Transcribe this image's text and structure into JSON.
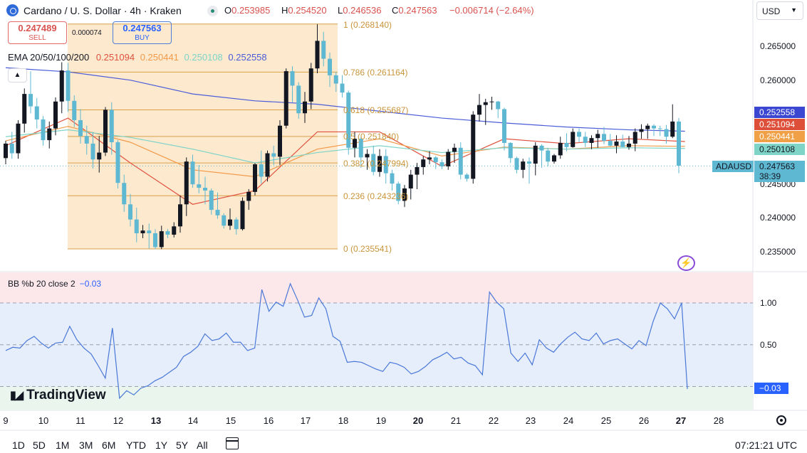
{
  "header": {
    "title": "Cardano / U. S. Dollar · 4h · Kraken",
    "ohlc": [
      {
        "key": "O",
        "value": "0.253985"
      },
      {
        "key": "H",
        "value": "0.254520"
      },
      {
        "key": "L",
        "value": "0.246536"
      },
      {
        "key": "C",
        "value": "0.247563"
      }
    ],
    "change": "−0.006714 (−2.64%)",
    "currency": "USD"
  },
  "trade": {
    "sell_price": "0.247489",
    "sell_label": "SELL",
    "spread": "0.000074",
    "buy_price": "0.247563",
    "buy_label": "BUY"
  },
  "ema_legend": {
    "label": "EMA 20/50/100/200",
    "values": [
      "0.251094",
      "0.250441",
      "0.250108",
      "0.252558"
    ],
    "colors": [
      "#e0523f",
      "#f29a4a",
      "#7fd4c8",
      "#4a5bd8"
    ]
  },
  "bb_legend": {
    "label": "BB %b 20 close 2",
    "value": "−0.03"
  },
  "fib_labels": [
    "1 (0.268140)",
    "0.786 (0.261164)",
    "0.618 (0.255687)",
    "0.5 (0.251840)",
    "0.382 (0.247994)",
    "0.236 (0.243236)",
    "0 (0.235541)"
  ],
  "price_axis": {
    "ticks": [
      "0.265000",
      "0.260000",
      "0.245000",
      "0.240000",
      "0.235000"
    ],
    "badges": [
      {
        "text": "0.252558",
        "color": "#3b47d0"
      },
      {
        "text": "0.251094",
        "color": "#de4f3a"
      },
      {
        "text": "0.250441",
        "color": "#f0a046"
      },
      {
        "text": "0.250108",
        "color": "#7fd4c8"
      }
    ],
    "symbol": "ADAUSD",
    "last_price": "0.247563",
    "countdown": "38:39"
  },
  "bb_axis": {
    "ticks": [
      "1.00",
      "0.50"
    ],
    "current": "−0.03"
  },
  "time_axis": {
    "ticks": [
      {
        "label": "9",
        "bold": false
      },
      {
        "label": "10",
        "bold": false
      },
      {
        "label": "11",
        "bold": false
      },
      {
        "label": "12",
        "bold": false
      },
      {
        "label": "13",
        "bold": true
      },
      {
        "label": "14",
        "bold": false
      },
      {
        "label": "15",
        "bold": false
      },
      {
        "label": "16",
        "bold": false
      },
      {
        "label": "17",
        "bold": false
      },
      {
        "label": "18",
        "bold": false
      },
      {
        "label": "19",
        "bold": false
      },
      {
        "label": "20",
        "bold": true
      },
      {
        "label": "21",
        "bold": false
      },
      {
        "label": "22",
        "bold": false
      },
      {
        "label": "23",
        "bold": false
      },
      {
        "label": "24",
        "bold": false
      },
      {
        "label": "25",
        "bold": false
      },
      {
        "label": "26",
        "bold": false
      },
      {
        "label": "27",
        "bold": true
      },
      {
        "label": "28",
        "bold": false
      }
    ]
  },
  "brand": "TradingView",
  "timeframes": [
    "1D",
    "5D",
    "1M",
    "3M",
    "6M",
    "YTD",
    "1Y",
    "5Y",
    "All"
  ],
  "clock": "07:21:21 UTC",
  "chart_data": [
    {
      "type": "candlestick",
      "title": "Cardano / U. S. Dollar · 4h · Kraken",
      "x_unit": "day of month (4h bars)",
      "y_range": [
        0.2325,
        0.2765
      ],
      "up_color": "#131722",
      "down_color": "#5fb8d1",
      "candles": [
        [
          0.2487,
          0.2512,
          0.2478,
          0.2508
        ],
        [
          0.2508,
          0.2525,
          0.2486,
          0.2494
        ],
        [
          0.2494,
          0.2542,
          0.2486,
          0.2537
        ],
        [
          0.2537,
          0.2588,
          0.2524,
          0.258
        ],
        [
          0.258,
          0.2613,
          0.2552,
          0.2562
        ],
        [
          0.2562,
          0.2574,
          0.253,
          0.2543
        ],
        [
          0.2543,
          0.2548,
          0.2505,
          0.2513
        ],
        [
          0.2513,
          0.254,
          0.2501,
          0.253
        ],
        [
          0.253,
          0.2575,
          0.252,
          0.2569
        ],
        [
          0.2569,
          0.2626,
          0.2552,
          0.2614
        ],
        [
          0.2614,
          0.2625,
          0.2554,
          0.257
        ],
        [
          0.257,
          0.2578,
          0.2532,
          0.2542
        ],
        [
          0.2542,
          0.2558,
          0.2508,
          0.2519
        ],
        [
          0.2519,
          0.2534,
          0.2492,
          0.2508
        ],
        [
          0.2508,
          0.2525,
          0.2472,
          0.2485
        ],
        [
          0.2485,
          0.2519,
          0.2466,
          0.2495
        ],
        [
          0.2495,
          0.2561,
          0.249,
          0.2557
        ],
        [
          0.2557,
          0.2568,
          0.2492,
          0.251
        ],
        [
          0.251,
          0.2513,
          0.2443,
          0.2451
        ],
        [
          0.2451,
          0.2463,
          0.2409,
          0.242
        ],
        [
          0.242,
          0.2435,
          0.2388,
          0.2398
        ],
        [
          0.2398,
          0.2415,
          0.2365,
          0.2378
        ],
        [
          0.2378,
          0.239,
          0.2371,
          0.2382
        ],
        [
          0.2382,
          0.2392,
          0.2356,
          0.2378
        ],
        [
          0.2378,
          0.2384,
          0.2355,
          0.2358
        ],
        [
          0.2358,
          0.2389,
          0.2355,
          0.2381
        ],
        [
          0.2381,
          0.2384,
          0.2371,
          0.2376
        ],
        [
          0.2376,
          0.2394,
          0.2372,
          0.2388
        ],
        [
          0.2388,
          0.2433,
          0.2379,
          0.242
        ],
        [
          0.242,
          0.2488,
          0.2403,
          0.2482
        ],
        [
          0.2482,
          0.2492,
          0.2444,
          0.2449
        ],
        [
          0.2449,
          0.2477,
          0.2436,
          0.2444
        ],
        [
          0.2444,
          0.246,
          0.242,
          0.244
        ],
        [
          0.244,
          0.2443,
          0.2405,
          0.2412
        ],
        [
          0.2412,
          0.2437,
          0.2399,
          0.2404
        ],
        [
          0.2404,
          0.2407,
          0.2385,
          0.2389
        ],
        [
          0.2389,
          0.2414,
          0.2383,
          0.2398
        ],
        [
          0.2398,
          0.2401,
          0.2376,
          0.2384
        ],
        [
          0.2384,
          0.243,
          0.2382,
          0.2425
        ],
        [
          0.2425,
          0.2442,
          0.2412,
          0.2438
        ],
        [
          0.2438,
          0.248,
          0.2433,
          0.2478
        ],
        [
          0.2478,
          0.2498,
          0.245,
          0.246
        ],
        [
          0.246,
          0.2498,
          0.2453,
          0.2494
        ],
        [
          0.2494,
          0.2505,
          0.2477,
          0.2489
        ],
        [
          0.2489,
          0.2542,
          0.2477,
          0.2534
        ],
        [
          0.2534,
          0.2617,
          0.253,
          0.2613
        ],
        [
          0.2613,
          0.262,
          0.2568,
          0.2592
        ],
        [
          0.2592,
          0.2597,
          0.2544,
          0.2552
        ],
        [
          0.2552,
          0.2583,
          0.2538,
          0.2569
        ],
        [
          0.2569,
          0.2625,
          0.2558,
          0.2617
        ],
        [
          0.2617,
          0.2681,
          0.261,
          0.2657
        ],
        [
          0.2657,
          0.267,
          0.262,
          0.2631
        ],
        [
          0.2631,
          0.264,
          0.259,
          0.2607
        ],
        [
          0.2607,
          0.2612,
          0.2583,
          0.2595
        ],
        [
          0.2595,
          0.2607,
          0.2575,
          0.2582
        ],
        [
          0.2582,
          0.2585,
          0.2492,
          0.2502
        ],
        [
          0.2502,
          0.2525,
          0.2488,
          0.2515
        ],
        [
          0.2515,
          0.2517,
          0.2473,
          0.2488
        ],
        [
          0.2488,
          0.25,
          0.247,
          0.2493
        ],
        [
          0.2493,
          0.2505,
          0.2462,
          0.2467
        ],
        [
          0.2467,
          0.25,
          0.246,
          0.249
        ],
        [
          0.249,
          0.25,
          0.245,
          0.2465
        ],
        [
          0.2465,
          0.247,
          0.244,
          0.245
        ],
        [
          0.245,
          0.2453,
          0.242,
          0.2425
        ],
        [
          0.2425,
          0.2448,
          0.2416,
          0.2443
        ],
        [
          0.2443,
          0.247,
          0.2427,
          0.2463
        ],
        [
          0.2463,
          0.248,
          0.2442,
          0.2474
        ],
        [
          0.2474,
          0.249,
          0.2463,
          0.2485
        ],
        [
          0.2485,
          0.2497,
          0.2478,
          0.2488
        ],
        [
          0.2488,
          0.249,
          0.2471,
          0.2481
        ],
        [
          0.2481,
          0.2485,
          0.2471,
          0.2475
        ],
        [
          0.2475,
          0.25,
          0.247,
          0.2496
        ],
        [
          0.2496,
          0.2508,
          0.248,
          0.2502
        ],
        [
          0.2502,
          0.251,
          0.2456,
          0.2463
        ],
        [
          0.2463,
          0.2465,
          0.2453,
          0.2457
        ],
        [
          0.2457,
          0.2555,
          0.245,
          0.255
        ],
        [
          0.255,
          0.258,
          0.254,
          0.2564
        ],
        [
          0.2564,
          0.2573,
          0.2535,
          0.2568
        ],
        [
          0.2568,
          0.2576,
          0.2557,
          0.2569
        ],
        [
          0.2569,
          0.257,
          0.2545,
          0.2558
        ],
        [
          0.2558,
          0.256,
          0.2498,
          0.2509
        ],
        [
          0.2509,
          0.251,
          0.248,
          0.2487
        ],
        [
          0.2487,
          0.2489,
          0.2465,
          0.247
        ],
        [
          0.247,
          0.2486,
          0.2458,
          0.2482
        ],
        [
          0.2482,
          0.2488,
          0.245,
          0.2479
        ],
        [
          0.2479,
          0.251,
          0.2462,
          0.2505
        ],
        [
          0.2505,
          0.2507,
          0.2473,
          0.2498
        ],
        [
          0.2498,
          0.2502,
          0.2475,
          0.2482
        ],
        [
          0.2482,
          0.2493,
          0.2479,
          0.2491
        ],
        [
          0.2491,
          0.2518,
          0.2486,
          0.2509
        ],
        [
          0.2509,
          0.2523,
          0.2497,
          0.2503
        ],
        [
          0.2503,
          0.253,
          0.2502,
          0.2525
        ],
        [
          0.2525,
          0.253,
          0.251,
          0.2518
        ],
        [
          0.2518,
          0.2525,
          0.2503,
          0.2509
        ],
        [
          0.2509,
          0.252,
          0.25,
          0.2516
        ],
        [
          0.2516,
          0.2528,
          0.2502,
          0.2522
        ],
        [
          0.2522,
          0.2532,
          0.2507,
          0.2512
        ],
        [
          0.2512,
          0.2522,
          0.2504,
          0.2505
        ],
        [
          0.2505,
          0.252,
          0.2494,
          0.2511
        ],
        [
          0.2511,
          0.2521,
          0.2503,
          0.2503
        ],
        [
          0.2503,
          0.2519,
          0.2499,
          0.2508
        ],
        [
          0.2508,
          0.253,
          0.2497,
          0.2525
        ],
        [
          0.2525,
          0.2536,
          0.2515,
          0.2529
        ],
        [
          0.2529,
          0.2537,
          0.2515,
          0.2534
        ],
        [
          0.2534,
          0.2536,
          0.2519,
          0.253
        ],
        [
          0.253,
          0.2534,
          0.2519,
          0.2529
        ],
        [
          0.2529,
          0.2535,
          0.2508,
          0.2518
        ],
        [
          0.2518,
          0.2565,
          0.2516,
          0.254
        ],
        [
          0.254,
          0.2545,
          0.2465,
          0.2476
        ]
      ],
      "ema": [
        {
          "name": "EMA 20",
          "color": "#e0523f",
          "x": [
            0,
            10,
            20,
            30,
            40,
            50,
            60,
            70,
            80,
            90,
            100,
            109
          ],
          "y": [
            0.2505,
            0.2545,
            0.248,
            0.242,
            0.244,
            0.2525,
            0.2525,
            0.2475,
            0.2515,
            0.2508,
            0.2515,
            0.2511
          ]
        },
        {
          "name": "EMA 50",
          "color": "#f29a4a",
          "x": [
            0,
            10,
            20,
            30,
            40,
            50,
            60,
            70,
            80,
            90,
            100,
            109
          ],
          "y": [
            0.2512,
            0.2533,
            0.251,
            0.247,
            0.246,
            0.25,
            0.2515,
            0.249,
            0.2503,
            0.25,
            0.2505,
            0.2504
          ]
        },
        {
          "name": "EMA 100",
          "color": "#7fd4c8",
          "x": [
            0,
            10,
            20,
            30,
            40,
            50,
            60,
            70,
            80,
            90,
            100,
            109
          ],
          "y": [
            0.2518,
            0.2528,
            0.2517,
            0.25,
            0.248,
            0.2495,
            0.2505,
            0.2495,
            0.2502,
            0.25,
            0.2502,
            0.2501
          ]
        },
        {
          "name": "EMA 200",
          "color": "#4a5bd8",
          "x": [
            0,
            10,
            20,
            30,
            40,
            50,
            60,
            70,
            80,
            90,
            100,
            109
          ],
          "y": [
            0.2618,
            0.2612,
            0.26,
            0.258,
            0.257,
            0.2565,
            0.2555,
            0.2545,
            0.2538,
            0.2532,
            0.2528,
            0.2526
          ]
        }
      ],
      "fibonacci": {
        "start_bar": 18,
        "end_bar": 90,
        "levels": [
          {
            "ratio": 1,
            "price": 0.26814
          },
          {
            "ratio": 0.786,
            "price": 0.261164
          },
          {
            "ratio": 0.618,
            "price": 0.255687
          },
          {
            "ratio": 0.5,
            "price": 0.25184
          },
          {
            "ratio": 0.382,
            "price": 0.247994
          },
          {
            "ratio": 0.236,
            "price": 0.243236
          },
          {
            "ratio": 0,
            "price": 0.235541
          }
        ]
      },
      "last_price": 0.247563
    },
    {
      "type": "line",
      "title": "BB %b 20 close 2",
      "y_range": [
        -0.3,
        1.55
      ],
      "bands": [
        1.0,
        0.5,
        0.0
      ],
      "color": "#4a78d8",
      "values": [
        0.43,
        0.47,
        0.46,
        0.55,
        0.6,
        0.52,
        0.46,
        0.52,
        0.53,
        0.72,
        0.56,
        0.46,
        0.39,
        0.25,
        0.1,
        0.7,
        -0.14,
        -0.05,
        -0.1,
        -0.02,
        0.01,
        0.07,
        0.11,
        0.17,
        0.23,
        0.36,
        0.41,
        0.48,
        0.63,
        0.55,
        0.57,
        0.64,
        0.53,
        0.53,
        0.43,
        0.46,
        1.16,
        0.9,
        1.01,
        0.96,
        1.23,
        1.04,
        0.83,
        0.85,
        1.06,
        0.93,
        0.6,
        0.54,
        0.29,
        0.3,
        0.29,
        0.25,
        0.21,
        0.18,
        0.29,
        0.27,
        0.23,
        0.15,
        0.18,
        0.24,
        0.32,
        0.36,
        0.41,
        0.33,
        0.35,
        0.28,
        0.25,
        0.14,
        1.13,
        1.01,
        0.93,
        0.4,
        0.3,
        0.4,
        0.26,
        0.56,
        0.46,
        0.41,
        0.51,
        0.59,
        0.65,
        0.57,
        0.55,
        0.64,
        0.51,
        0.55,
        0.57,
        0.51,
        0.45,
        0.55,
        0.49,
        0.78,
        1.0,
        0.93,
        0.81,
        1.0,
        -0.03
      ]
    }
  ]
}
